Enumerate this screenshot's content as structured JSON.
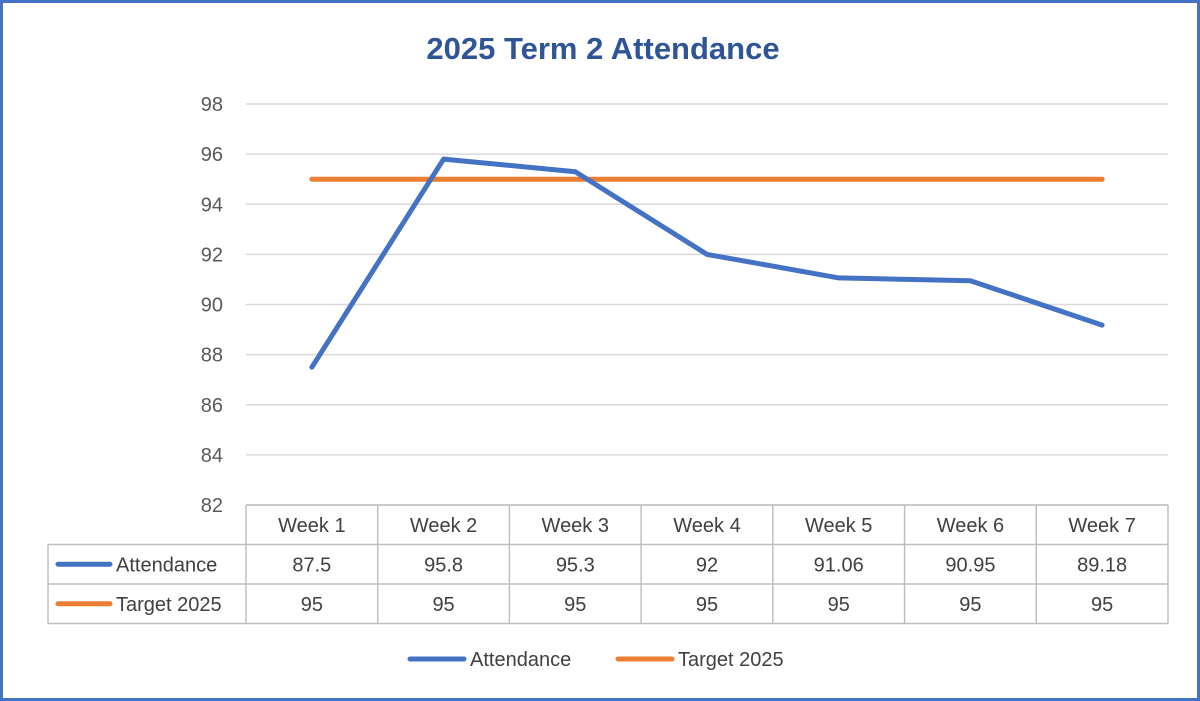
{
  "chart_data": {
    "type": "line",
    "title": "2025 Term 2 Attendance",
    "categories": [
      "Week 1",
      "Week 2",
      "Week 3",
      "Week 4",
      "Week 5",
      "Week 6",
      "Week 7"
    ],
    "series": [
      {
        "name": "Attendance",
        "values": [
          87.5,
          95.8,
          95.3,
          92,
          91.06,
          90.95,
          89.18
        ],
        "color": "#4472C4"
      },
      {
        "name": "Target 2025",
        "values": [
          95,
          95,
          95,
          95,
          95,
          95,
          95
        ],
        "color": "#ED7D31"
      }
    ],
    "data_table": {
      "rows": [
        [
          "87.5",
          "95.8",
          "95.3",
          "92",
          "91.06",
          "90.95",
          "89.18"
        ],
        [
          "95",
          "95",
          "95",
          "95",
          "95",
          "95",
          "95"
        ]
      ]
    },
    "ylim": [
      82,
      98
    ],
    "yticks": [
      82,
      84,
      86,
      88,
      90,
      92,
      94,
      96,
      98
    ],
    "grid": true,
    "legend_position": "bottom"
  }
}
